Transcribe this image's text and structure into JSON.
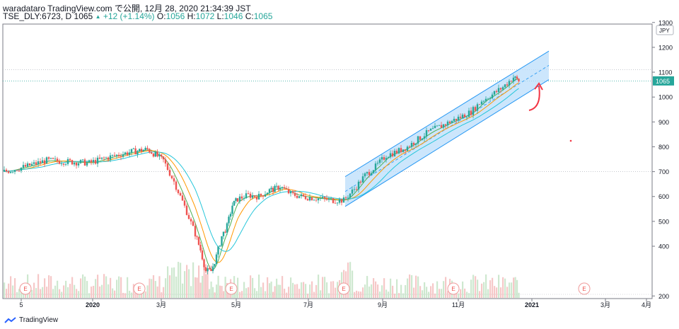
{
  "header": {
    "line1": "waradataro TradingView.com で公開, 12月 28, 2020 21:34:39 JST",
    "symbol": "TSE_DLY:6723, D",
    "close_value": "1065",
    "change": "+12 (+1.14%)",
    "o_label": "O:",
    "o_value": "1056",
    "h_label": "H:",
    "h_value": "1072",
    "l_label": "L:",
    "l_value": "1046",
    "c_label": "C:",
    "c_value": "1065"
  },
  "footer": {
    "brand": "TradingView"
  },
  "colors": {
    "up": "#26a69a",
    "down": "#ef5350",
    "channel_fill": "#bbdefb",
    "channel_line": "#2196f3",
    "ma_green": "#4caf50",
    "ma_orange": "#ff9800",
    "ma_teal": "#26c6da"
  },
  "chart_data": {
    "type": "line",
    "currency_badge": "JPY",
    "last_price_label": "1065",
    "y_ticks": [
      "1300",
      "1200",
      "1100",
      "1000",
      "900",
      "800",
      "700",
      "600",
      "500",
      "400",
      "200"
    ],
    "x_ticks": [
      "5",
      "2020",
      "3月",
      "5月",
      "7月",
      "9月",
      "11月",
      "2021",
      "3月",
      "4月"
    ],
    "earnings_markers": [
      "E",
      "E",
      "E",
      "E",
      "E",
      "E"
    ],
    "close_path": [
      [
        0,
        700
      ],
      [
        4,
        720
      ],
      [
        8,
        745
      ],
      [
        12,
        740
      ],
      [
        16,
        735
      ],
      [
        20,
        760
      ],
      [
        24,
        780
      ],
      [
        27,
        790
      ],
      [
        30,
        745
      ],
      [
        32,
        660
      ],
      [
        34,
        560
      ],
      [
        36,
        450
      ],
      [
        37,
        385
      ],
      [
        38,
        300
      ],
      [
        39,
        300
      ],
      [
        40,
        360
      ],
      [
        41,
        440
      ],
      [
        42,
        480
      ],
      [
        43,
        565
      ],
      [
        44,
        590
      ],
      [
        46,
        605
      ],
      [
        48,
        600
      ],
      [
        50,
        625
      ],
      [
        51,
        630
      ],
      [
        52,
        640
      ],
      [
        54,
        610
      ],
      [
        56,
        600
      ],
      [
        58,
        595
      ],
      [
        60,
        590
      ],
      [
        62,
        585
      ],
      [
        64,
        585
      ],
      [
        66,
        630
      ],
      [
        68,
        685
      ],
      [
        70,
        720
      ],
      [
        72,
        765
      ],
      [
        74,
        780
      ],
      [
        76,
        800
      ],
      [
        78,
        830
      ],
      [
        80,
        860
      ],
      [
        82,
        880
      ],
      [
        84,
        900
      ],
      [
        86,
        920
      ],
      [
        88,
        940
      ],
      [
        90,
        985
      ],
      [
        92,
        1010
      ],
      [
        94,
        1040
      ],
      [
        96,
        1080
      ],
      [
        97,
        1065
      ]
    ],
    "volume_note": "daily volume histogram",
    "channel": {
      "lower_start": [
        64,
        560
      ],
      "lower_end": [
        102,
        1070
      ],
      "upper_start": [
        64,
        680
      ],
      "upper_end": [
        102,
        1185
      ]
    },
    "horizontal_levels": [
      1110,
      1065,
      700
    ]
  }
}
